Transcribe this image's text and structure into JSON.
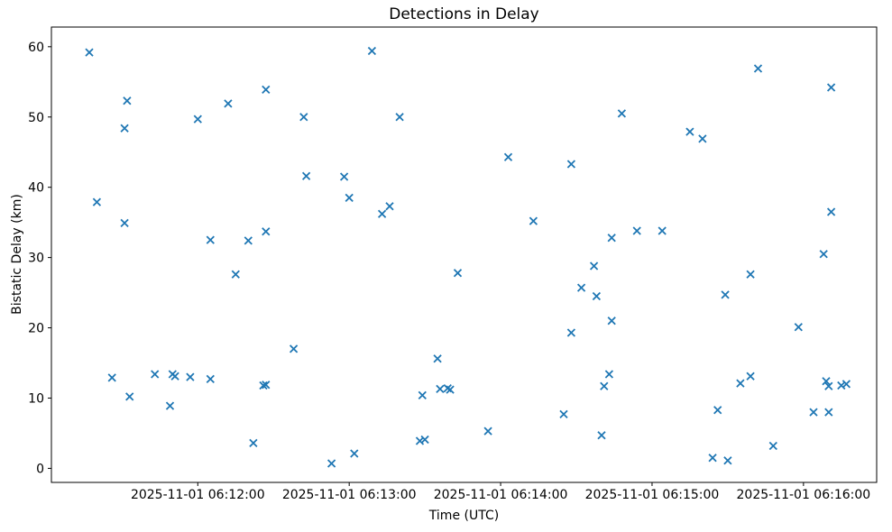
{
  "figure": {
    "title": "Detections in Delay",
    "xlabel": "Time (UTC)",
    "ylabel": "Bistatic Delay (km)"
  },
  "chart_data": {
    "type": "scatter",
    "title": "Detections in Delay",
    "xlabel": "Time (UTC)",
    "ylabel": "Bistatic Delay (km)",
    "date": "2025-11-01",
    "marker": "x",
    "marker_color": "#1f77b4",
    "background_color": "#ffffff",
    "grid": false,
    "legend": null,
    "x_ticks": [
      {
        "time": "06:12:00",
        "label": "2025-11-01 06:12:00"
      },
      {
        "time": "06:13:00",
        "label": "2025-11-01 06:13:00"
      },
      {
        "time": "06:14:00",
        "label": "2025-11-01 06:14:00"
      },
      {
        "time": "06:15:00",
        "label": "2025-11-01 06:15:00"
      },
      {
        "time": "06:16:00",
        "label": "2025-11-01 06:16:00"
      }
    ],
    "y_ticks": [
      0,
      10,
      20,
      30,
      40,
      50,
      60
    ],
    "xlim_time": [
      "06:11:02",
      "06:16:29"
    ],
    "ylim": [
      -2,
      62.8
    ],
    "point_format": [
      "time_utc",
      "bistatic_delay_km"
    ],
    "points": [
      [
        "06:11:17",
        59.2
      ],
      [
        "06:11:20",
        37.9
      ],
      [
        "06:11:26",
        12.9
      ],
      [
        "06:11:31",
        48.4
      ],
      [
        "06:11:31",
        34.9
      ],
      [
        "06:11:32",
        52.3
      ],
      [
        "06:11:33",
        10.2
      ],
      [
        "06:11:43",
        13.4
      ],
      [
        "06:11:49",
        8.9
      ],
      [
        "06:11:50",
        13.4
      ],
      [
        "06:11:51",
        13.1
      ],
      [
        "06:11:57",
        13.0
      ],
      [
        "06:12:00",
        49.7
      ],
      [
        "06:12:05",
        12.7
      ],
      [
        "06:12:05",
        32.5
      ],
      [
        "06:12:12",
        51.9
      ],
      [
        "06:12:15",
        27.6
      ],
      [
        "06:12:20",
        32.4
      ],
      [
        "06:12:22",
        3.6
      ],
      [
        "06:12:26",
        11.8
      ],
      [
        "06:12:27",
        11.9
      ],
      [
        "06:12:27",
        53.9
      ],
      [
        "06:12:27",
        33.7
      ],
      [
        "06:12:38",
        17.0
      ],
      [
        "06:12:42",
        50.0
      ],
      [
        "06:12:43",
        41.6
      ],
      [
        "06:12:53",
        0.7
      ],
      [
        "06:12:58",
        41.5
      ],
      [
        "06:13:00",
        38.5
      ],
      [
        "06:13:02",
        2.1
      ],
      [
        "06:13:09",
        59.4
      ],
      [
        "06:13:13",
        36.2
      ],
      [
        "06:13:16",
        37.3
      ],
      [
        "06:13:20",
        50.0
      ],
      [
        "06:13:28",
        3.9
      ],
      [
        "06:13:29",
        10.4
      ],
      [
        "06:13:30",
        4.1
      ],
      [
        "06:13:35",
        15.6
      ],
      [
        "06:13:36",
        11.3
      ],
      [
        "06:13:39",
        11.4
      ],
      [
        "06:13:40",
        11.2
      ],
      [
        "06:13:43",
        27.8
      ],
      [
        "06:13:55",
        5.3
      ],
      [
        "06:14:03",
        44.3
      ],
      [
        "06:14:13",
        35.2
      ],
      [
        "06:14:25",
        7.7
      ],
      [
        "06:14:28",
        19.3
      ],
      [
        "06:14:28",
        43.3
      ],
      [
        "06:14:32",
        25.7
      ],
      [
        "06:14:37",
        28.8
      ],
      [
        "06:14:38",
        24.5
      ],
      [
        "06:14:40",
        4.7
      ],
      [
        "06:14:41",
        11.7
      ],
      [
        "06:14:43",
        13.4
      ],
      [
        "06:14:44",
        21.0
      ],
      [
        "06:14:44",
        32.8
      ],
      [
        "06:14:48",
        50.5
      ],
      [
        "06:14:54",
        33.8
      ],
      [
        "06:15:04",
        33.8
      ],
      [
        "06:15:15",
        47.9
      ],
      [
        "06:15:20",
        46.9
      ],
      [
        "06:15:24",
        1.5
      ],
      [
        "06:15:26",
        8.3
      ],
      [
        "06:15:29",
        24.7
      ],
      [
        "06:15:30",
        1.1
      ],
      [
        "06:15:35",
        12.1
      ],
      [
        "06:15:39",
        13.1
      ],
      [
        "06:15:39",
        27.6
      ],
      [
        "06:15:42",
        56.9
      ],
      [
        "06:15:48",
        3.2
      ],
      [
        "06:15:58",
        20.1
      ],
      [
        "06:16:04",
        8.0
      ],
      [
        "06:16:08",
        30.5
      ],
      [
        "06:16:09",
        12.4
      ],
      [
        "06:16:10",
        11.7
      ],
      [
        "06:16:10",
        8.0
      ],
      [
        "06:16:11",
        54.2
      ],
      [
        "06:16:11",
        36.5
      ],
      [
        "06:16:15",
        11.8
      ],
      [
        "06:16:17",
        12.0
      ]
    ]
  }
}
